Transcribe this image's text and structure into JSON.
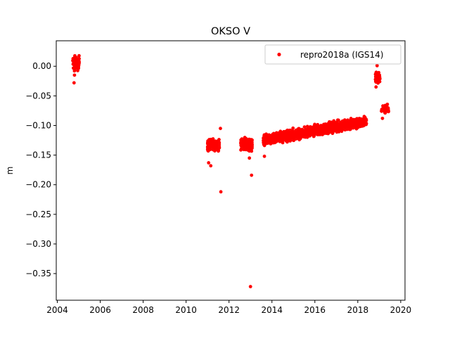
{
  "chart_data": {
    "type": "scatter",
    "title": "OKSO V",
    "xlabel": "",
    "ylabel": "m",
    "xlim": [
      2003.95,
      2020.2
    ],
    "ylim": [
      -0.395,
      0.043
    ],
    "x_ticks": [
      2004,
      2006,
      2008,
      2010,
      2012,
      2014,
      2016,
      2018,
      2020
    ],
    "x_tick_labels": [
      "2004",
      "2006",
      "2008",
      "2010",
      "2012",
      "2014",
      "2016",
      "2018",
      "2020"
    ],
    "y_ticks": [
      0.0,
      -0.05,
      -0.1,
      -0.15,
      -0.2,
      -0.25,
      -0.3,
      -0.35
    ],
    "y_tick_labels": [
      "0.00",
      "−0.05",
      "−0.10",
      "−0.15",
      "−0.20",
      "−0.25",
      "−0.30",
      "−0.35"
    ],
    "grid": false,
    "legend_position": "top-right",
    "series": [
      {
        "name": "repro2018a (IGS14)",
        "color": "#ff0000",
        "marker": "circle",
        "clusters": [
          {
            "x_range": [
              2004.72,
              2005.02
            ],
            "y_center": 0.005,
            "y_spread": 0.01,
            "density": 80
          },
          {
            "x_range": [
              2011.0,
              2011.55
            ],
            "y_center": -0.133,
            "y_spread": 0.008,
            "density": 200
          },
          {
            "x_range": [
              2012.55,
              2013.08
            ],
            "y_center": -0.132,
            "y_spread": 0.008,
            "density": 180
          },
          {
            "x_range": [
              2013.6,
              2018.4
            ],
            "y_start": -0.125,
            "y_end": -0.093,
            "y_spread": 0.007,
            "density": 1800
          },
          {
            "x_range": [
              2018.82,
              2019.05
            ],
            "y_center": -0.02,
            "y_spread": 0.008,
            "density": 60
          },
          {
            "x_range": [
              2019.1,
              2019.45
            ],
            "y_center": -0.073,
            "y_spread": 0.007,
            "density": 40
          }
        ],
        "outliers": [
          {
            "x": 2004.78,
            "y": -0.028
          },
          {
            "x": 2004.8,
            "y": -0.015
          },
          {
            "x": 2011.05,
            "y": -0.163
          },
          {
            "x": 2011.15,
            "y": -0.168
          },
          {
            "x": 2011.6,
            "y": -0.105
          },
          {
            "x": 2011.62,
            "y": -0.212
          },
          {
            "x": 2012.95,
            "y": -0.155
          },
          {
            "x": 2013.05,
            "y": -0.184
          },
          {
            "x": 2013.0,
            "y": -0.372
          },
          {
            "x": 2013.65,
            "y": -0.152
          },
          {
            "x": 2018.85,
            "y": -0.035
          },
          {
            "x": 2018.9,
            "y": 0.001
          },
          {
            "x": 2019.15,
            "y": -0.088
          }
        ]
      }
    ]
  }
}
